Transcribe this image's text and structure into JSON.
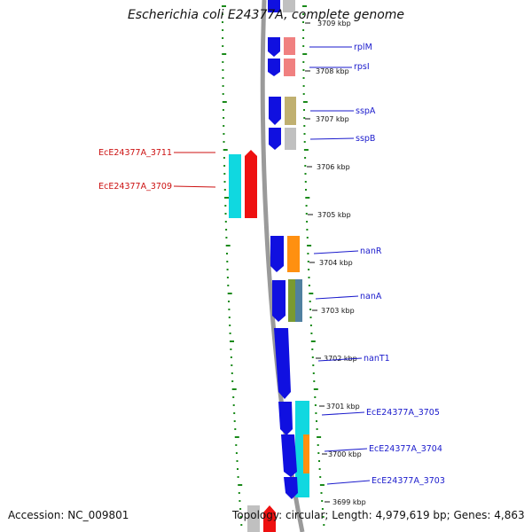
{
  "title": "Escherichia coli E24377A, complete genome",
  "footer": {
    "accession": "Accession: NC_009801",
    "summary": "Topology: circular; Length: 4,979,619 bp; Genes: 4,863"
  },
  "colors": {
    "backbone": "#8a8a8a",
    "dots": "#1a8a1a",
    "cds_blue": "#1010e0",
    "highlight_red": "#ee1010",
    "label_blue": "#1a1acc",
    "label_red": "#cc1010",
    "cyan": "#10d8e0",
    "orange": "#ff9010",
    "pink": "#f08080",
    "olive": "#c0b070",
    "grey": "#c0c0c0",
    "green": "#7a9a30",
    "steel": "#5080a0"
  },
  "position_ticks": [
    "3709 kbp",
    "3708 kbp",
    "3707 kbp",
    "3706 kbp",
    "3705 kbp",
    "3704 kbp",
    "3703 kbp",
    "3702 kbp",
    "3701 kbp",
    "3700 kbp",
    "3699 kbp"
  ],
  "gene_labels": [
    {
      "name": "rplM",
      "strand": "forward"
    },
    {
      "name": "rpsI",
      "strand": "forward"
    },
    {
      "name": "sspA",
      "strand": "forward"
    },
    {
      "name": "sspB",
      "strand": "forward"
    },
    {
      "name": "EcE24377A_3711",
      "strand": "reverse"
    },
    {
      "name": "EcE24377A_3709",
      "strand": "reverse"
    },
    {
      "name": "nanR",
      "strand": "forward"
    },
    {
      "name": "nanA",
      "strand": "forward"
    },
    {
      "name": "nanT1",
      "strand": "forward"
    },
    {
      "name": "EcE24377A_3705",
      "strand": "forward"
    },
    {
      "name": "EcE24377A_3704",
      "strand": "forward"
    },
    {
      "name": "EcE24377A_3703",
      "strand": "forward"
    }
  ]
}
